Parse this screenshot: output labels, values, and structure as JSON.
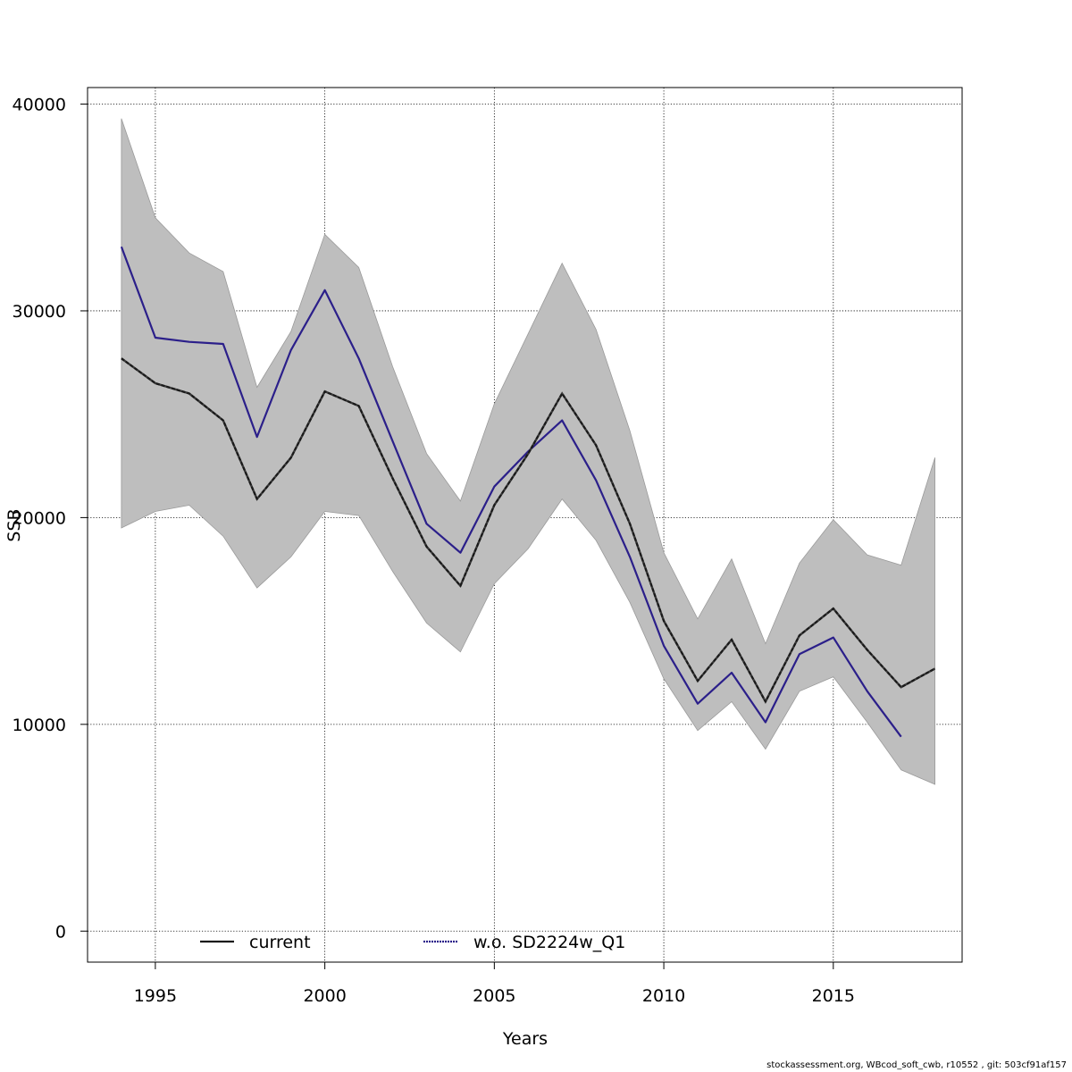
{
  "footer_text": "stockassessment.org, WBcod_soft_cwb, r10552 , git: 503cf91af157",
  "colors": {
    "current": "#1a1a1a",
    "alternative": "#2b1f8a",
    "band": "#bebebe",
    "band_edge": "#9a9a9a",
    "grid": "#000000"
  },
  "chart_data": {
    "type": "line",
    "title": "",
    "xlabel": "Years",
    "ylabel": "SSB",
    "xlim": [
      1993,
      2018.8
    ],
    "ylim": [
      -1500,
      40800
    ],
    "xticks": [
      1995,
      2000,
      2005,
      2010,
      2015
    ],
    "yticks": [
      0,
      10000,
      20000,
      30000,
      40000
    ],
    "grid": true,
    "legend_position": "bottom",
    "x": [
      1994,
      1995,
      1996,
      1997,
      1998,
      1999,
      2000,
      2001,
      2002,
      2003,
      2004,
      2005,
      2006,
      2007,
      2008,
      2009,
      2010,
      2011,
      2012,
      2013,
      2014,
      2015,
      2016,
      2017,
      2018
    ],
    "confidence_band": {
      "upper": [
        39300,
        34500,
        32800,
        31900,
        26300,
        29000,
        33700,
        32100,
        27300,
        23100,
        20800,
        25500,
        28900,
        32300,
        29100,
        24200,
        18300,
        15100,
        18000,
        13900,
        17800,
        19900,
        18200,
        17700,
        22900
      ],
      "lower": [
        19500,
        20300,
        20600,
        19100,
        16600,
        18100,
        20300,
        20100,
        17400,
        14900,
        13500,
        16800,
        18500,
        20900,
        18900,
        15900,
        12200,
        9700,
        11100,
        8800,
        11600,
        12300,
        10100,
        7800,
        7100
      ]
    },
    "series": [
      {
        "name": "current",
        "x": [
          1994,
          1995,
          1996,
          1997,
          1998,
          1999,
          2000,
          2001,
          2002,
          2003,
          2004,
          2005,
          2006,
          2007,
          2008,
          2009,
          2010,
          2011,
          2012,
          2013,
          2014,
          2015,
          2016,
          2017,
          2018
        ],
        "values": [
          27700,
          26500,
          26000,
          24700,
          20900,
          22900,
          26100,
          25400,
          21900,
          18600,
          16700,
          20600,
          23100,
          26000,
          23500,
          19700,
          15000,
          12100,
          14100,
          11100,
          14300,
          15600,
          13600,
          11800,
          12700
        ]
      },
      {
        "name": "w.o. SD2224w_Q1",
        "x": [
          1994,
          1995,
          1996,
          1997,
          1998,
          1999,
          2000,
          2001,
          2002,
          2003,
          2004,
          2005,
          2006,
          2007,
          2008,
          2009,
          2010,
          2011,
          2012,
          2013,
          2014,
          2015,
          2016,
          2017
        ],
        "values": [
          33100,
          28700,
          28500,
          28400,
          23900,
          28100,
          31000,
          27700,
          23700,
          19700,
          18300,
          21500,
          23200,
          24700,
          21800,
          18100,
          13800,
          11000,
          12500,
          10100,
          13400,
          14200,
          11600,
          9400
        ]
      }
    ]
  }
}
